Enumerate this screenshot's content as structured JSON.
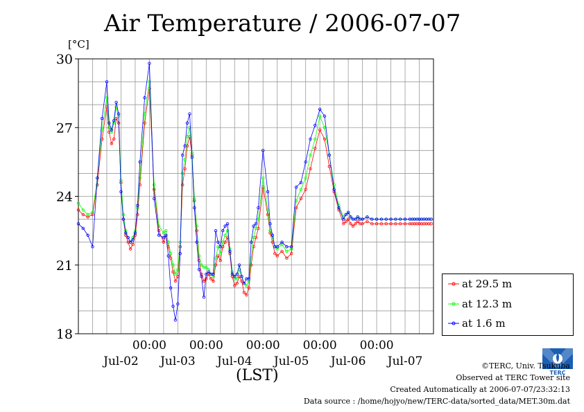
{
  "chart_data": {
    "type": "line",
    "title": "Air Temperature / 2006-07-07",
    "ylabel": "[°C]",
    "xlabel": "(LST)",
    "ylim": [
      18,
      30
    ],
    "yticks": [
      18,
      21,
      24,
      27,
      30
    ],
    "xlim": [
      "2006-07-01T18:00",
      "2006-07-08T00:00"
    ],
    "x_midnight_labels": [
      "00:00",
      "00:00",
      "00:00",
      "00:00",
      "00:00"
    ],
    "x_date_labels": [
      "Jul-02",
      "Jul-03",
      "Jul-04",
      "Jul-05",
      "Jul-06",
      "Jul-07"
    ],
    "x_date_label_positions": [
      "2006-07-02T12:00",
      "2006-07-03T12:00",
      "2006-07-04T12:00",
      "2006-07-05T12:00",
      "2006-07-06T12:00",
      "2006-07-07T12:00"
    ],
    "x_hours": [
      "2006-07-01T18:00",
      "2006-07-01T20:00",
      "2006-07-01T22:00",
      "2006-07-02T00:00",
      "2006-07-02T02:00",
      "2006-07-02T04:00",
      "2006-07-02T06:00",
      "2006-07-02T07:00",
      "2006-07-02T08:00",
      "2006-07-02T09:00",
      "2006-07-02T10:00",
      "2006-07-02T11:00",
      "2006-07-02T12:00",
      "2006-07-02T13:00",
      "2006-07-02T14:00",
      "2006-07-02T15:00",
      "2006-07-02T16:00",
      "2006-07-02T17:00",
      "2006-07-02T18:00",
      "2006-07-02T19:00",
      "2006-07-02T20:00",
      "2006-07-02T22:00",
      "2006-07-03T00:00",
      "2006-07-03T02:00",
      "2006-07-03T04:00",
      "2006-07-03T06:00",
      "2006-07-03T07:00",
      "2006-07-03T08:00",
      "2006-07-03T09:00",
      "2006-07-03T10:00",
      "2006-07-03T11:00",
      "2006-07-03T12:00",
      "2006-07-03T13:00",
      "2006-07-03T14:00",
      "2006-07-03T15:00",
      "2006-07-03T16:00",
      "2006-07-03T17:00",
      "2006-07-03T18:00",
      "2006-07-03T19:00",
      "2006-07-03T20:00",
      "2006-07-03T21:00",
      "2006-07-03T22:00",
      "2006-07-03T23:00",
      "2006-07-04T00:00",
      "2006-07-04T01:00",
      "2006-07-04T02:00",
      "2006-07-04T03:00",
      "2006-07-04T04:00",
      "2006-07-04T05:00",
      "2006-07-04T06:00",
      "2006-07-04T07:00",
      "2006-07-04T08:00",
      "2006-07-04T09:00",
      "2006-07-04T10:00",
      "2006-07-04T11:00",
      "2006-07-04T12:00",
      "2006-07-04T13:00",
      "2006-07-04T14:00",
      "2006-07-04T15:00",
      "2006-07-04T16:00",
      "2006-07-04T17:00",
      "2006-07-04T18:00",
      "2006-07-04T19:00",
      "2006-07-04T20:00",
      "2006-07-04T21:00",
      "2006-07-04T22:00",
      "2006-07-05T00:00",
      "2006-07-05T02:00",
      "2006-07-05T03:00",
      "2006-07-05T04:00",
      "2006-07-05T05:00",
      "2006-07-05T06:00",
      "2006-07-05T08:00",
      "2006-07-05T10:00",
      "2006-07-05T12:00",
      "2006-07-05T14:00",
      "2006-07-05T16:00",
      "2006-07-05T18:00",
      "2006-07-05T20:00",
      "2006-07-05T22:00",
      "2006-07-06T00:00",
      "2006-07-06T02:00",
      "2006-07-06T04:00",
      "2006-07-06T06:00",
      "2006-07-06T08:00",
      "2006-07-06T10:00",
      "2006-07-06T11:00",
      "2006-07-06T12:00",
      "2006-07-06T13:00",
      "2006-07-06T14:00",
      "2006-07-06T15:00",
      "2006-07-06T16:00",
      "2006-07-06T17:00",
      "2006-07-06T18:00",
      "2006-07-06T20:00",
      "2006-07-06T22:00",
      "2006-07-07T00:00",
      "2006-07-07T02:00",
      "2006-07-07T04:00",
      "2006-07-07T06:00",
      "2006-07-07T08:00",
      "2006-07-07T10:00",
      "2006-07-07T12:00",
      "2006-07-07T14:00",
      "2006-07-07T15:00",
      "2006-07-07T16:00",
      "2006-07-07T17:00",
      "2006-07-07T18:00",
      "2006-07-07T19:00",
      "2006-07-07T20:00",
      "2006-07-07T21:00",
      "2006-07-07T22:00",
      "2006-07-07T23:00",
      "2006-07-07T23:30"
    ],
    "series": [
      {
        "name": "at 29.5 m",
        "color": "#ff0000",
        "values": [
          23.4,
          23.2,
          23.1,
          23.2,
          24.5,
          26.5,
          27.9,
          26.8,
          26.3,
          26.5,
          27.4,
          27.2,
          24.6,
          23.0,
          22.3,
          22.0,
          21.7,
          21.9,
          22.3,
          23.2,
          24.5,
          27.2,
          28.7,
          24.3,
          22.5,
          22.0,
          22.3,
          21.8,
          21.3,
          20.7,
          20.3,
          20.5,
          21.8,
          24.5,
          25.2,
          26.2,
          26.6,
          25.8,
          23.8,
          22.5,
          21.2,
          20.6,
          20.3,
          20.4,
          20.6,
          20.4,
          20.3,
          21.0,
          21.4,
          21.2,
          21.8,
          22.0,
          22.2,
          21.5,
          20.5,
          20.1,
          20.2,
          20.5,
          20.3,
          19.8,
          19.7,
          20.0,
          21.0,
          21.8,
          22.2,
          22.6,
          24.4,
          23.2,
          22.4,
          22.0,
          21.5,
          21.4,
          21.6,
          21.3,
          21.5,
          23.5,
          23.9,
          24.3,
          25.2,
          26.1,
          26.9,
          26.5,
          25.3,
          24.2,
          23.4,
          22.8,
          22.9,
          23.0,
          22.8,
          22.7,
          22.8,
          22.9,
          22.8,
          22.8,
          22.9,
          22.8,
          22.8,
          22.8,
          22.8,
          22.8,
          22.8,
          22.8,
          22.8,
          22.8,
          22.8,
          22.8,
          22.8,
          22.8,
          22.8,
          22.8,
          22.8,
          22.8,
          22.8
        ]
      },
      {
        "name": "at 12.3 m",
        "color": "#00ff00",
        "values": [
          23.7,
          23.4,
          23.2,
          23.3,
          24.8,
          26.9,
          28.3,
          27.0,
          26.8,
          27.2,
          27.9,
          27.5,
          24.7,
          23.2,
          22.5,
          22.2,
          22.0,
          22.2,
          22.5,
          23.5,
          24.8,
          27.6,
          29.0,
          24.5,
          22.7,
          22.4,
          22.5,
          22.0,
          21.5,
          21.0,
          20.6,
          20.8,
          22.0,
          25.0,
          25.6,
          26.6,
          27.0,
          25.9,
          23.9,
          22.7,
          21.4,
          21.0,
          20.9,
          20.9,
          20.8,
          20.6,
          20.5,
          21.3,
          21.8,
          21.5,
          22.0,
          22.3,
          22.5,
          21.7,
          20.7,
          20.4,
          20.4,
          20.8,
          20.5,
          20.2,
          20.1,
          20.3,
          21.3,
          22.2,
          22.6,
          23.0,
          24.8,
          23.4,
          22.5,
          22.2,
          21.8,
          21.7,
          21.9,
          21.6,
          21.7,
          23.8,
          24.3,
          24.8,
          25.8,
          26.5,
          27.5,
          27.0,
          25.8,
          24.5,
          23.6,
          23.1,
          23.2,
          23.3,
          23.1,
          23.0,
          23.0,
          23.1,
          23.0,
          23.0,
          23.1,
          23.0,
          23.0,
          23.0,
          23.0,
          23.0,
          23.0,
          23.0,
          23.0,
          23.0,
          23.0,
          23.0,
          23.0,
          23.0,
          23.0,
          23.0,
          23.0,
          23.0,
          23.0
        ]
      },
      {
        "name": "at 1.6 m",
        "color": "#0000ff",
        "values": [
          22.8,
          22.6,
          22.3,
          21.8,
          24.8,
          27.4,
          29.0,
          27.2,
          26.9,
          27.3,
          28.1,
          27.6,
          24.2,
          23.0,
          22.4,
          22.2,
          22.0,
          22.1,
          22.4,
          23.6,
          25.5,
          28.3,
          29.8,
          23.9,
          22.3,
          22.2,
          22.3,
          21.4,
          20.0,
          19.2,
          18.6,
          19.3,
          21.5,
          25.8,
          26.2,
          27.2,
          27.6,
          25.7,
          23.5,
          22.0,
          20.8,
          20.5,
          19.6,
          20.6,
          20.7,
          20.6,
          20.6,
          22.5,
          22.0,
          21.8,
          22.5,
          22.7,
          22.8,
          21.6,
          20.6,
          20.5,
          20.6,
          21.0,
          20.5,
          20.2,
          20.4,
          20.4,
          22.0,
          22.7,
          22.8,
          23.5,
          26.0,
          24.2,
          22.8,
          22.3,
          21.8,
          21.8,
          22.0,
          21.8,
          21.8,
          24.4,
          24.6,
          25.5,
          26.5,
          27.1,
          27.8,
          27.5,
          25.8,
          24.3,
          23.5,
          23.0,
          23.2,
          23.3,
          23.1,
          23.0,
          23.0,
          23.1,
          23.0,
          23.0,
          23.1,
          23.0,
          23.0,
          23.0,
          23.0,
          23.0,
          23.0,
          23.0,
          23.0,
          23.0,
          23.0,
          23.0,
          23.0,
          23.0,
          23.0,
          23.0,
          23.0,
          23.0,
          23.0
        ]
      }
    ],
    "grid": true,
    "legend_position": "right-bottom"
  },
  "footer": {
    "copyright": "©TERC, Univ. Tsukuba",
    "observed": "Observed at TERC Tower site",
    "created": "Created Automatically at 2006-07-07/23:32:13",
    "source": "Data source : /home/hojyo/new/TERC-data/sorted_data/MET.30m.dat"
  },
  "logo_text": "TERC"
}
